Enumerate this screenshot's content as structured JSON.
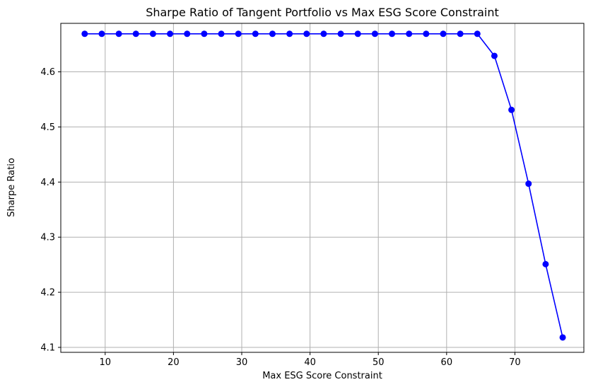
{
  "chart_data": {
    "type": "line",
    "title": "Sharpe Ratio of Tangent Portfolio vs Max ESG Score Constraint",
    "xlabel": "Max ESG Score Constraint",
    "ylabel": "Sharpe Ratio",
    "xlim": [
      3.5,
      80.1
    ],
    "ylim": [
      4.091,
      4.688
    ],
    "xticks": [
      10,
      20,
      30,
      40,
      50,
      60,
      70
    ],
    "xtick_labels": [
      "10",
      "20",
      "30",
      "40",
      "50",
      "60",
      "70"
    ],
    "yticks": [
      4.1,
      4.2,
      4.3,
      4.4,
      4.5,
      4.6
    ],
    "ytick_labels": [
      "4.1",
      "4.2",
      "4.3",
      "4.4",
      "4.5",
      "4.6"
    ],
    "grid": true,
    "marker": "circle",
    "series": [
      {
        "color": "#0000ff",
        "x": [
          7.0,
          9.5,
          12.0,
          14.5,
          17.0,
          19.5,
          22.0,
          24.5,
          27.0,
          29.5,
          32.0,
          34.5,
          37.0,
          39.5,
          42.0,
          44.5,
          47.0,
          49.5,
          52.0,
          54.5,
          57.0,
          59.5,
          62.0,
          64.5,
          67.0,
          69.5,
          72.0,
          74.5,
          77.0
        ],
        "y": [
          4.669,
          4.669,
          4.669,
          4.669,
          4.669,
          4.669,
          4.669,
          4.669,
          4.669,
          4.669,
          4.669,
          4.669,
          4.669,
          4.669,
          4.669,
          4.669,
          4.669,
          4.669,
          4.669,
          4.669,
          4.669,
          4.669,
          4.669,
          4.669,
          4.629,
          4.531,
          4.397,
          4.251,
          4.118
        ]
      }
    ]
  }
}
